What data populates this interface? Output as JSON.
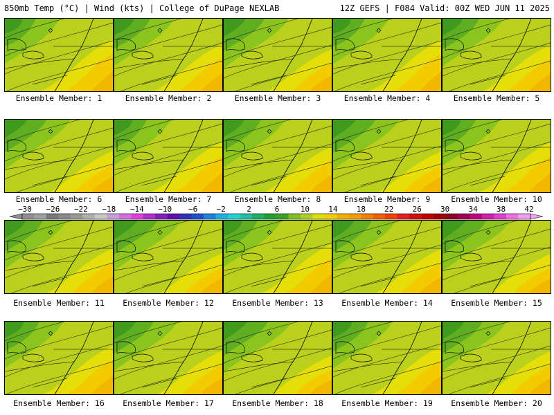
{
  "header": {
    "left": "850mb Temp (°C) | Wind (kts) | College of DuPage NEXLAB",
    "right": "12Z GEFS | F084 Valid: 00Z WED JUN 11 2025"
  },
  "members": [
    "Ensemble Member: 1",
    "Ensemble Member: 2",
    "Ensemble Member: 3",
    "Ensemble Member: 4",
    "Ensemble Member: 5",
    "Ensemble Member: 6",
    "Ensemble Member: 7",
    "Ensemble Member: 8",
    "Ensemble Member: 9",
    "Ensemble Member: 10",
    "Ensemble Member: 11",
    "Ensemble Member: 12",
    "Ensemble Member: 13",
    "Ensemble Member: 14",
    "Ensemble Member: 15",
    "Ensemble Member: 16",
    "Ensemble Member: 17",
    "Ensemble Member: 18",
    "Ensemble Member: 19",
    "Ensemble Member: 20"
  ],
  "colorbar": {
    "labels": [
      "−30",
      "−26",
      "−22",
      "−18",
      "−14",
      "−10",
      "−6",
      "−2",
      "2",
      "6",
      "10",
      "14",
      "18",
      "22",
      "26",
      "30",
      "34",
      "38",
      "42"
    ],
    "colors": [
      "#909090",
      "#a0a0a0",
      "#7a7a7a",
      "#8a8a8a",
      "#9a9a9a",
      "#b0b0b0",
      "#c8c8c8",
      "#c9a0dc",
      "#d070e0",
      "#e040e0",
      "#b030d0",
      "#8020c0",
      "#6010b0",
      "#3030c0",
      "#2050d0",
      "#2080e0",
      "#20b0e0",
      "#20d0d0",
      "#20c0a0",
      "#20b060",
      "#20a030",
      "#40a020",
      "#80c020",
      "#b0d020",
      "#e0e000",
      "#f0d000",
      "#f0b000",
      "#f0a000",
      "#f08000",
      "#f06000",
      "#f04000",
      "#e02020",
      "#d01010",
      "#c00000",
      "#a00000",
      "#900020",
      "#a00050",
      "#c00080",
      "#d020b0",
      "#e040d0",
      "#f070e0",
      "#f0a0f0"
    ]
  }
}
